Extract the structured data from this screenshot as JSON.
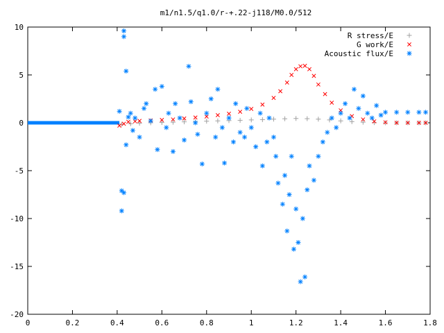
{
  "chart_data": {
    "type": "scatter",
    "title": "m1/n1.5/q1.0/r-+.22-j118/M0.0/512",
    "xlabel": "",
    "ylabel": "",
    "xlim": [
      0,
      1.8
    ],
    "ylim": [
      -20,
      10
    ],
    "x_ticks": [
      0,
      0.2,
      0.4,
      0.6,
      0.8,
      1,
      1.2,
      1.4,
      1.6,
      1.8
    ],
    "x_tick_labels": [
      "0",
      "0.2",
      "0.4",
      "0.6",
      "0.8",
      "1",
      "1.2",
      "1.4",
      "1.6",
      "1.8"
    ],
    "y_ticks": [
      -20,
      -15,
      -10,
      -5,
      0,
      5,
      10
    ],
    "y_tick_labels": [
      "-20",
      "-15",
      "-10",
      "-5",
      "0",
      "5",
      "10"
    ],
    "grid": false,
    "legend_position": "top-right",
    "series": [
      {
        "name": "R stress/E",
        "marker": "plus",
        "color": "#a0a0a0",
        "points": [
          [
            0.42,
            -0.15
          ],
          [
            0.46,
            -0.1
          ],
          [
            0.5,
            -0.05
          ],
          [
            0.55,
            0.0
          ],
          [
            0.6,
            0.03
          ],
          [
            0.65,
            0.06
          ],
          [
            0.7,
            0.1
          ],
          [
            0.75,
            0.13
          ],
          [
            0.8,
            0.17
          ],
          [
            0.85,
            0.2
          ],
          [
            0.9,
            0.23
          ],
          [
            0.95,
            0.26
          ],
          [
            1.0,
            0.3
          ],
          [
            1.05,
            0.33
          ],
          [
            1.1,
            0.38
          ],
          [
            1.15,
            0.42
          ],
          [
            1.2,
            0.45
          ],
          [
            1.25,
            0.43
          ],
          [
            1.3,
            0.38
          ],
          [
            1.35,
            0.3
          ],
          [
            1.4,
            0.2
          ],
          [
            1.45,
            0.12
          ],
          [
            1.5,
            0.06
          ],
          [
            1.55,
            0.02
          ],
          [
            1.6,
            0.0
          ],
          [
            1.65,
            0.0
          ],
          [
            1.7,
            0.0
          ],
          [
            1.75,
            0.0
          ],
          [
            1.78,
            0.0
          ]
        ]
      },
      {
        "name": "G work/E",
        "marker": "cross",
        "color": "#ff0000",
        "points": [
          [
            0.41,
            -0.3
          ],
          [
            0.43,
            -0.1
          ],
          [
            0.45,
            0.1
          ],
          [
            0.48,
            0.15
          ],
          [
            0.5,
            0.2
          ],
          [
            0.55,
            0.25
          ],
          [
            0.6,
            0.3
          ],
          [
            0.65,
            0.35
          ],
          [
            0.7,
            0.45
          ],
          [
            0.75,
            0.55
          ],
          [
            0.8,
            0.65
          ],
          [
            0.85,
            0.8
          ],
          [
            0.9,
            0.95
          ],
          [
            0.95,
            1.15
          ],
          [
            1.0,
            1.45
          ],
          [
            1.05,
            1.9
          ],
          [
            1.1,
            2.6
          ],
          [
            1.13,
            3.3
          ],
          [
            1.16,
            4.2
          ],
          [
            1.18,
            5.0
          ],
          [
            1.2,
            5.6
          ],
          [
            1.22,
            5.9
          ],
          [
            1.24,
            5.95
          ],
          [
            1.26,
            5.6
          ],
          [
            1.28,
            4.9
          ],
          [
            1.3,
            4.0
          ],
          [
            1.33,
            3.0
          ],
          [
            1.36,
            2.1
          ],
          [
            1.4,
            1.3
          ],
          [
            1.45,
            0.7
          ],
          [
            1.5,
            0.35
          ],
          [
            1.55,
            0.15
          ],
          [
            1.6,
            0.05
          ],
          [
            1.65,
            0.0
          ],
          [
            1.7,
            0.0
          ],
          [
            1.75,
            0.0
          ],
          [
            1.78,
            0.0
          ]
        ]
      },
      {
        "name": "Acoustic flux/E",
        "marker": "star",
        "color": "#0080ff",
        "points": [
          [
            0.41,
            1.2
          ],
          [
            0.42,
            -9.2
          ],
          [
            0.42,
            -7.1
          ],
          [
            0.43,
            -7.3
          ],
          [
            0.43,
            9.6
          ],
          [
            0.43,
            9.0
          ],
          [
            0.44,
            5.4
          ],
          [
            0.44,
            -2.3
          ],
          [
            0.45,
            0.6
          ],
          [
            0.46,
            1.0
          ],
          [
            0.47,
            -0.8
          ],
          [
            0.48,
            0.5
          ],
          [
            0.5,
            -1.5
          ],
          [
            0.52,
            1.5
          ],
          [
            0.53,
            2.0
          ],
          [
            0.55,
            0.2
          ],
          [
            0.57,
            3.5
          ],
          [
            0.58,
            -2.8
          ],
          [
            0.6,
            3.8
          ],
          [
            0.62,
            -0.5
          ],
          [
            0.63,
            1.0
          ],
          [
            0.65,
            -3.0
          ],
          [
            0.66,
            2.0
          ],
          [
            0.68,
            0.5
          ],
          [
            0.7,
            -1.8
          ],
          [
            0.72,
            5.9
          ],
          [
            0.73,
            2.2
          ],
          [
            0.75,
            0.0
          ],
          [
            0.76,
            -1.2
          ],
          [
            0.78,
            -4.3
          ],
          [
            0.8,
            1.0
          ],
          [
            0.82,
            2.5
          ],
          [
            0.84,
            -1.5
          ],
          [
            0.85,
            3.5
          ],
          [
            0.87,
            -0.5
          ],
          [
            0.88,
            -4.2
          ],
          [
            0.9,
            0.5
          ],
          [
            0.92,
            -2.0
          ],
          [
            0.93,
            2.0
          ],
          [
            0.95,
            -1.0
          ],
          [
            0.97,
            -1.5
          ],
          [
            0.98,
            1.5
          ],
          [
            1.0,
            -0.5
          ],
          [
            1.02,
            -2.5
          ],
          [
            1.04,
            1.0
          ],
          [
            1.05,
            -4.5
          ],
          [
            1.07,
            -2.0
          ],
          [
            1.08,
            0.5
          ],
          [
            1.1,
            -1.5
          ],
          [
            1.11,
            -3.5
          ],
          [
            1.12,
            -6.3
          ],
          [
            1.14,
            -8.5
          ],
          [
            1.15,
            -5.5
          ],
          [
            1.16,
            -11.3
          ],
          [
            1.17,
            -7.5
          ],
          [
            1.18,
            -3.5
          ],
          [
            1.19,
            -13.2
          ],
          [
            1.2,
            -9.0
          ],
          [
            1.21,
            -12.5
          ],
          [
            1.22,
            -16.6
          ],
          [
            1.23,
            -10.0
          ],
          [
            1.24,
            -16.1
          ],
          [
            1.25,
            -7.0
          ],
          [
            1.26,
            -4.5
          ],
          [
            1.28,
            -6.0
          ],
          [
            1.3,
            -3.5
          ],
          [
            1.32,
            -2.0
          ],
          [
            1.34,
            -1.0
          ],
          [
            1.36,
            0.5
          ],
          [
            1.38,
            -0.5
          ],
          [
            1.4,
            1.0
          ],
          [
            1.42,
            2.0
          ],
          [
            1.44,
            0.5
          ],
          [
            1.46,
            3.5
          ],
          [
            1.48,
            1.5
          ],
          [
            1.5,
            2.8
          ],
          [
            1.52,
            1.0
          ],
          [
            1.54,
            0.5
          ],
          [
            1.56,
            1.8
          ],
          [
            1.58,
            0.8
          ],
          [
            1.6,
            1.1
          ],
          [
            1.65,
            1.1
          ],
          [
            1.7,
            1.1
          ],
          [
            1.75,
            1.1
          ],
          [
            1.78,
            1.1
          ]
        ]
      }
    ]
  }
}
